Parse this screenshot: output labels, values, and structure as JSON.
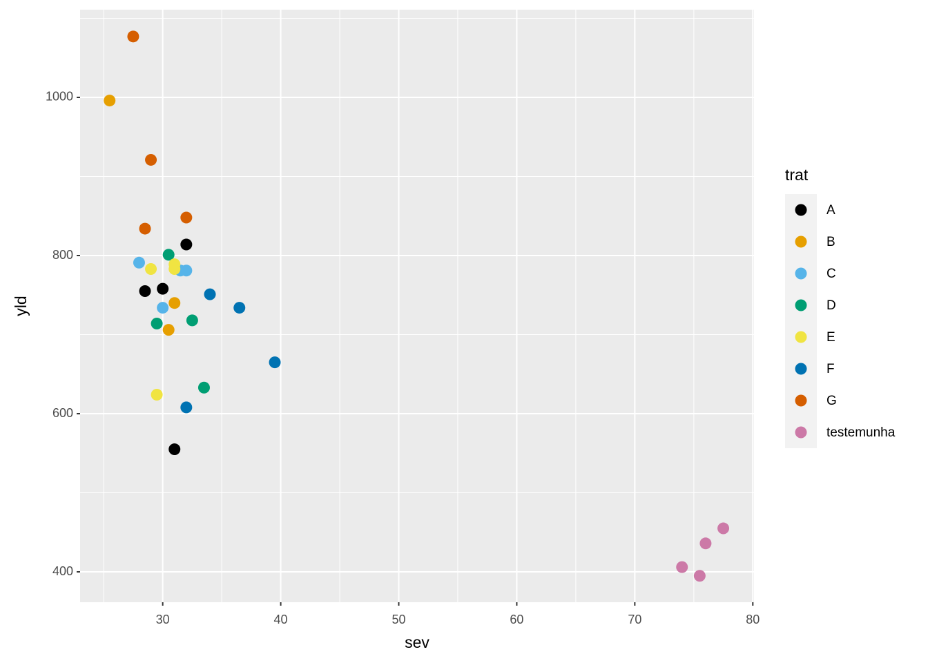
{
  "chart_data": {
    "type": "scatter",
    "x_label": "sev",
    "y_label": "yld",
    "legend_title": "trat",
    "xlim": [
      23,
      80.1
    ],
    "ylim": [
      361.6,
      1110.9
    ],
    "xticks": [
      30,
      40,
      50,
      60,
      70,
      80
    ],
    "yticks": [
      400,
      600,
      800,
      1000
    ],
    "xminor": [
      25,
      35,
      45,
      55,
      65,
      75
    ],
    "yminor": [
      500,
      700,
      900,
      1100
    ],
    "grid": true,
    "legend": "right",
    "series": [
      {
        "name": "A",
        "color": "#000000",
        "x": [
          28.5,
          30,
          32,
          31
        ],
        "values": [
          755,
          758,
          814,
          555
        ]
      },
      {
        "name": "B",
        "color": "#E69F00",
        "x": [
          25.5,
          31,
          30.5
        ],
        "values": [
          996,
          740,
          706
        ]
      },
      {
        "name": "C",
        "color": "#56B4E9",
        "x": [
          28,
          32,
          31.5,
          30
        ],
        "values": [
          791,
          781,
          781,
          734
        ]
      },
      {
        "name": "D",
        "color": "#009E73",
        "x": [
          30.5,
          29.5,
          32.5,
          33.5
        ],
        "values": [
          801,
          714,
          718,
          633
        ]
      },
      {
        "name": "E",
        "color": "#F0E442",
        "x": [
          29,
          31,
          31,
          29.5
        ],
        "values": [
          783,
          789,
          783,
          624
        ]
      },
      {
        "name": "F",
        "color": "#0072B2",
        "x": [
          34,
          36.5,
          39.5,
          32
        ],
        "values": [
          751,
          734,
          665,
          608
        ]
      },
      {
        "name": "G",
        "color": "#D55E00",
        "x": [
          27.5,
          29,
          28.5,
          32
        ],
        "values": [
          1077,
          921,
          834,
          848
        ]
      },
      {
        "name": "testemunha",
        "color": "#CC79A7",
        "x": [
          74,
          75.5,
          76,
          77.5
        ],
        "values": [
          406,
          395,
          436,
          455
        ]
      }
    ]
  }
}
